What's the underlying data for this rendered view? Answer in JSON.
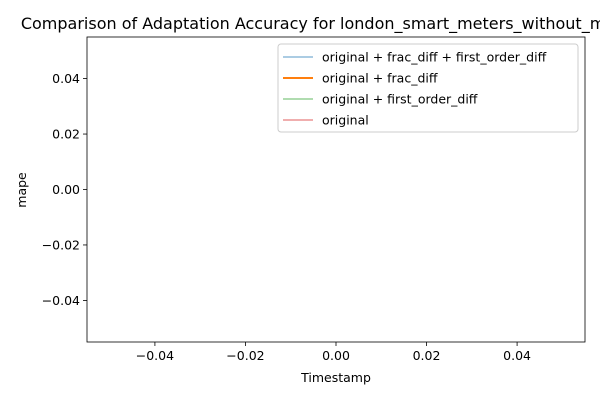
{
  "chart_data": {
    "type": "line",
    "title": "Comparison of Adaptation Accuracy for london_smart_meters_without_missing",
    "xlabel": "Timestamp",
    "ylabel": "mape",
    "xlim": [
      -0.055,
      0.055
    ],
    "ylim": [
      -0.055,
      0.055
    ],
    "x_ticks": [
      -0.04,
      -0.02,
      0.0,
      0.02,
      0.04
    ],
    "x_tick_labels": [
      "−0.04",
      "−0.02",
      "0.00",
      "0.02",
      "0.04"
    ],
    "y_ticks": [
      -0.04,
      -0.02,
      0.0,
      0.02,
      0.04
    ],
    "y_tick_labels": [
      "−0.04",
      "−0.02",
      "0.00",
      "0.02",
      "0.04"
    ],
    "grid": false,
    "legend_position": "top-right",
    "series": [
      {
        "name": "original + frac_diff + first_order_diff",
        "color": "#1f77b4",
        "values": []
      },
      {
        "name": "original + frac_diff",
        "color": "#ff7f0e",
        "values": []
      },
      {
        "name": "original + first_order_diff",
        "color": "#2ca02c",
        "values": []
      },
      {
        "name": "original",
        "color": "#d62728",
        "values": []
      }
    ]
  }
}
